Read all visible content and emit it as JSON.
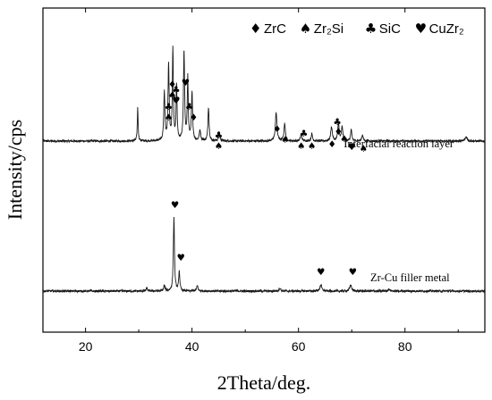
{
  "chart_data": {
    "type": "line",
    "xlabel": "2Theta/deg.",
    "ylabel": "Intensity/cps",
    "xlim": [
      12,
      95
    ],
    "xticks": [
      20,
      40,
      60,
      80
    ],
    "yticks_shown": false,
    "grid": false,
    "legend": {
      "placement": "top-right",
      "entries": [
        {
          "symbol": "♦",
          "label": "ZrC"
        },
        {
          "symbol": "♠",
          "label": "Zr₂Si"
        },
        {
          "symbol": "♣",
          "label": "SiC"
        },
        {
          "symbol": "♥",
          "label": "CuZr₂"
        }
      ]
    },
    "series": [
      {
        "name": "Interfacial reaction layer",
        "baseline": 1.0,
        "noise": 0.012,
        "peaks": [
          {
            "x": 29.8,
            "h": 0.38,
            "w": 0.18
          },
          {
            "x": 34.8,
            "h": 0.55,
            "w": 0.25
          },
          {
            "x": 35.6,
            "h": 0.85,
            "w": 0.25
          },
          {
            "x": 36.4,
            "h": 1.02,
            "w": 0.22
          },
          {
            "x": 37.1,
            "h": 0.62,
            "w": 0.22
          },
          {
            "x": 38.5,
            "h": 1.0,
            "w": 0.25
          },
          {
            "x": 39.2,
            "h": 0.7,
            "w": 0.22
          },
          {
            "x": 40.0,
            "h": 0.55,
            "w": 0.25
          },
          {
            "x": 41.5,
            "h": 0.12,
            "w": 0.3
          },
          {
            "x": 43.1,
            "h": 0.38,
            "w": 0.25
          },
          {
            "x": 45.1,
            "h": 0.1,
            "w": 0.3
          },
          {
            "x": 55.8,
            "h": 0.32,
            "w": 0.35
          },
          {
            "x": 57.4,
            "h": 0.2,
            "w": 0.3
          },
          {
            "x": 60.5,
            "h": 0.08,
            "w": 0.3
          },
          {
            "x": 62.5,
            "h": 0.08,
            "w": 0.3
          },
          {
            "x": 66.2,
            "h": 0.16,
            "w": 0.35
          },
          {
            "x": 67.5,
            "h": 0.2,
            "w": 0.3
          },
          {
            "x": 68.2,
            "h": 0.16,
            "w": 0.3
          },
          {
            "x": 69.9,
            "h": 0.12,
            "w": 0.3
          },
          {
            "x": 72.0,
            "h": 0.07,
            "w": 0.3
          },
          {
            "x": 91.5,
            "h": 0.05,
            "w": 0.4
          }
        ],
        "markers": [
          {
            "x": 35.6,
            "y": 1.35,
            "symbol": "♣"
          },
          {
            "x": 35.6,
            "y": 1.23,
            "symbol": "♠"
          },
          {
            "x": 36.3,
            "y": 1.6,
            "symbol": "♦"
          },
          {
            "x": 36.3,
            "y": 1.48,
            "symbol": "♠"
          },
          {
            "x": 37.0,
            "y": 1.54,
            "symbol": "♣"
          },
          {
            "x": 37.0,
            "y": 1.42,
            "symbol": "♥"
          },
          {
            "x": 38.8,
            "y": 1.62,
            "symbol": "♥"
          },
          {
            "x": 39.5,
            "y": 1.35,
            "symbol": "♣"
          },
          {
            "x": 40.3,
            "y": 1.23,
            "symbol": "♦"
          },
          {
            "x": 45.0,
            "y": 1.03,
            "symbol": "♣"
          },
          {
            "x": 45.0,
            "y": 0.91,
            "symbol": "♠"
          },
          {
            "x": 56.0,
            "y": 1.1,
            "symbol": "♦"
          },
          {
            "x": 57.5,
            "y": 0.98,
            "symbol": "♠"
          },
          {
            "x": 61.0,
            "y": 1.05,
            "symbol": "♣"
          },
          {
            "x": 60.5,
            "y": 0.91,
            "symbol": "♠"
          },
          {
            "x": 62.5,
            "y": 0.91,
            "symbol": "♠"
          },
          {
            "x": 67.3,
            "y": 1.18,
            "symbol": "♣"
          },
          {
            "x": 67.5,
            "y": 1.07,
            "symbol": "♦"
          },
          {
            "x": 68.6,
            "y": 0.99,
            "symbol": "♠"
          },
          {
            "x": 66.3,
            "y": 0.93,
            "symbol": "♦"
          },
          {
            "x": 70.0,
            "y": 0.9,
            "symbol": "♥"
          },
          {
            "x": 72.2,
            "y": 0.88,
            "symbol": "♠"
          }
        ],
        "label_position": {
          "x": 68.5,
          "y": 0.93
        }
      },
      {
        "name": "Zr-Cu filler metal",
        "baseline": 0.0,
        "noise": 0.012,
        "peaks": [
          {
            "x": 31.5,
            "h": 0.03,
            "w": 0.3
          },
          {
            "x": 34.8,
            "h": 0.06,
            "w": 0.3
          },
          {
            "x": 36.6,
            "h": 0.82,
            "w": 0.25
          },
          {
            "x": 37.6,
            "h": 0.22,
            "w": 0.25
          },
          {
            "x": 41.0,
            "h": 0.06,
            "w": 0.3
          },
          {
            "x": 56.5,
            "h": 0.03,
            "w": 0.4
          },
          {
            "x": 64.2,
            "h": 0.07,
            "w": 0.4
          },
          {
            "x": 69.8,
            "h": 0.07,
            "w": 0.4
          },
          {
            "x": 77.0,
            "h": 0.02,
            "w": 0.4
          }
        ],
        "markers": [
          {
            "x": 36.8,
            "y": 0.93,
            "symbol": "♥"
          },
          {
            "x": 37.9,
            "y": 0.34,
            "symbol": "♥"
          },
          {
            "x": 64.2,
            "y": 0.18,
            "symbol": "♥"
          },
          {
            "x": 70.2,
            "y": 0.18,
            "symbol": "♥"
          }
        ],
        "label_position": {
          "x": 73.5,
          "y": 0.11
        }
      }
    ]
  }
}
